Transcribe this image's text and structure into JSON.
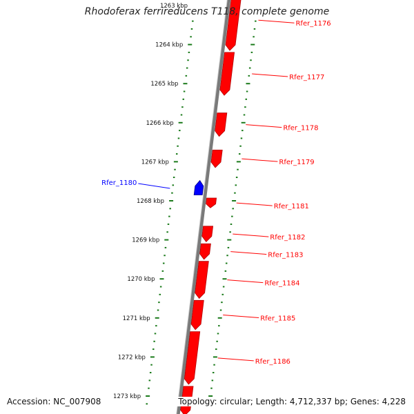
{
  "title": "Rhodoferax ferrireducens T118, complete genome",
  "footer": {
    "accession": "Accession: NC_007908",
    "summary": "Topology: circular; Length: 4,712,337 bp; Genes: 4,228"
  },
  "colors": {
    "forward_gene": "#ff0000",
    "reverse_gene": "#0000ff",
    "ruler": "#1a7a1a",
    "backbone": "#7a7a7a"
  },
  "map": {
    "kbp_ticks": [
      {
        "label": "1263 kbp",
        "kbp": 1263
      },
      {
        "label": "1264 kbp",
        "kbp": 1264
      },
      {
        "label": "1265 kbp",
        "kbp": 1265
      },
      {
        "label": "1266 kbp",
        "kbp": 1266
      },
      {
        "label": "1267 kbp",
        "kbp": 1267
      },
      {
        "label": "1268 kbp",
        "kbp": 1268
      },
      {
        "label": "1269 kbp",
        "kbp": 1269
      },
      {
        "label": "1270 kbp",
        "kbp": 1270
      },
      {
        "label": "1271 kbp",
        "kbp": 1271
      },
      {
        "label": "1272 kbp",
        "kbp": 1272
      },
      {
        "label": "1273 kbp",
        "kbp": 1273
      }
    ],
    "genes": [
      {
        "name": "Rfer_1176",
        "strand": "+",
        "start_kbp": 1262.6,
        "end_kbp": 1264.15
      },
      {
        "name": "Rfer_1177",
        "strand": "+",
        "start_kbp": 1264.2,
        "end_kbp": 1265.3
      },
      {
        "name": "Rfer_1178",
        "strand": "+",
        "start_kbp": 1265.75,
        "end_kbp": 1266.35
      },
      {
        "name": "Rfer_1179",
        "strand": "+",
        "start_kbp": 1266.7,
        "end_kbp": 1267.15
      },
      {
        "name": "Rfer_1180",
        "strand": "-",
        "start_kbp": 1267.48,
        "end_kbp": 1267.85
      },
      {
        "name": "Rfer_1181",
        "strand": "+",
        "start_kbp": 1267.93,
        "end_kbp": 1268.18
      },
      {
        "name": "Rfer_1182",
        "strand": "+",
        "start_kbp": 1268.65,
        "end_kbp": 1269.05
      },
      {
        "name": "Rfer_1183",
        "strand": "+",
        "start_kbp": 1269.1,
        "end_kbp": 1269.5
      },
      {
        "name": "Rfer_1184",
        "strand": "+",
        "start_kbp": 1269.55,
        "end_kbp": 1270.5
      },
      {
        "name": "Rfer_1185",
        "strand": "+",
        "start_kbp": 1270.55,
        "end_kbp": 1271.3
      },
      {
        "name": "Rfer_1186",
        "strand": "+",
        "start_kbp": 1271.35,
        "end_kbp": 1272.7
      },
      {
        "name": "",
        "strand": "+",
        "start_kbp": 1272.75,
        "end_kbp": 1273.5
      }
    ]
  }
}
